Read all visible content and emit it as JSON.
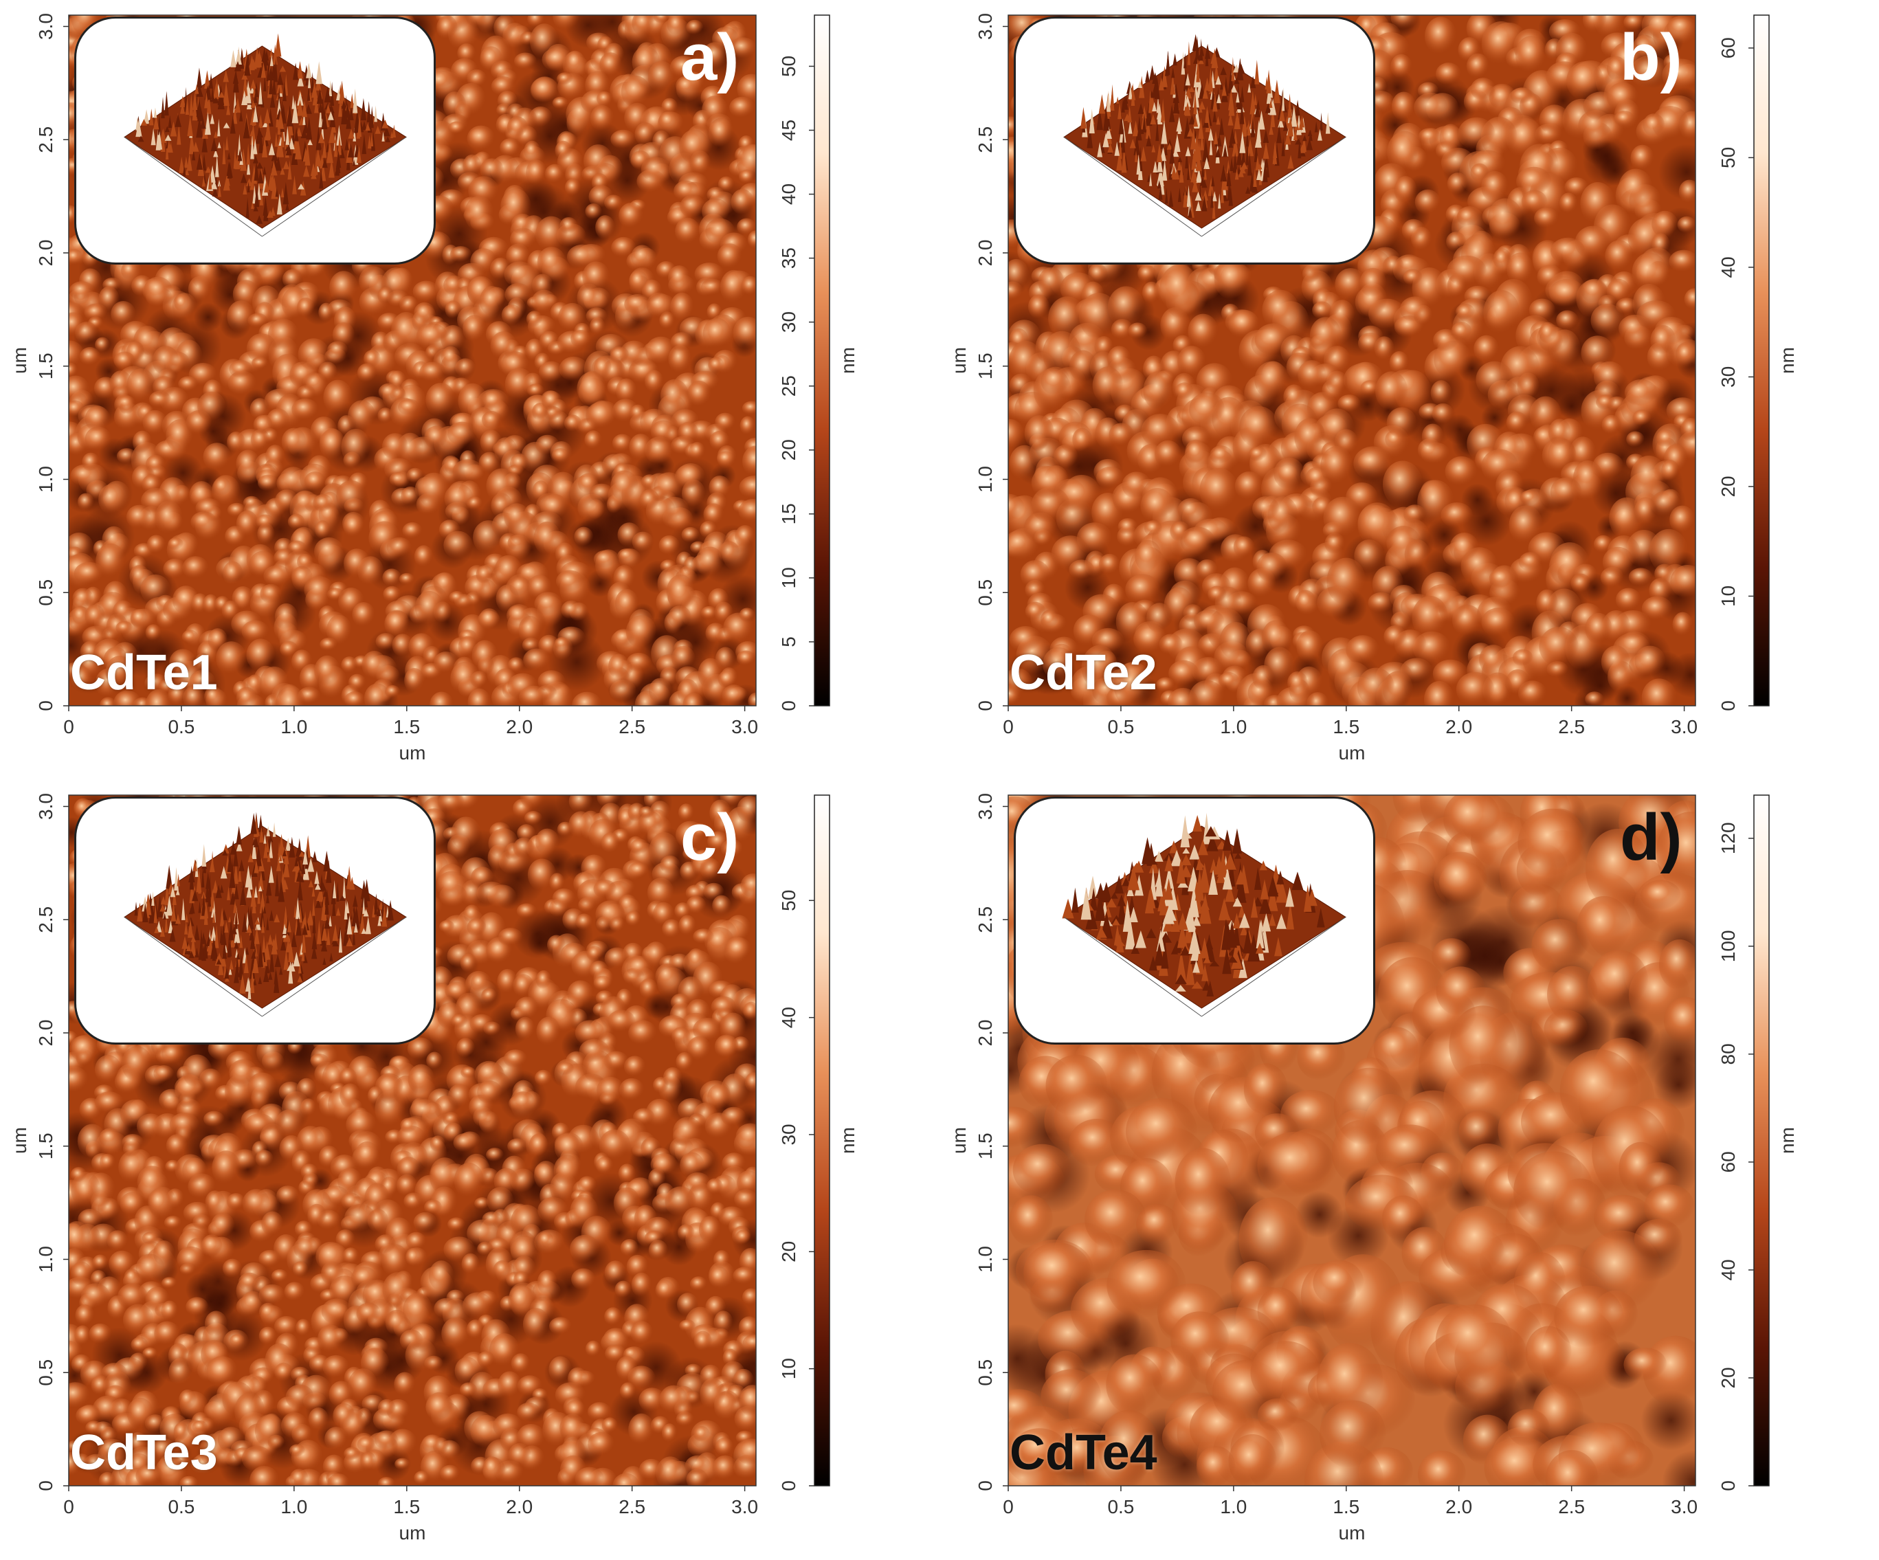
{
  "panels": [
    {
      "id": "a",
      "letter": "a)",
      "sample": "CdTe1",
      "x_axis": {
        "label": "um",
        "ticks": [
          "0",
          "0.5",
          "1.0",
          "1.5",
          "2.0",
          "2.5",
          "3.0"
        ]
      },
      "y_axis": {
        "label": "um",
        "ticks": [
          "0",
          "0.5",
          "1.0",
          "1.5",
          "2.0",
          "2.5",
          "3.0"
        ]
      },
      "colorbar": {
        "unit": "nm",
        "ticks": [
          "0",
          "5",
          "10",
          "15",
          "20",
          "25",
          "30",
          "35",
          "40",
          "45",
          "50"
        ],
        "max": 54
      },
      "grain": "fine",
      "dark_labels": false
    },
    {
      "id": "b",
      "letter": "b)",
      "sample": "CdTe2",
      "x_axis": {
        "label": "um",
        "ticks": [
          "0",
          "0.5",
          "1.0",
          "1.5",
          "2.0",
          "2.5",
          "3.0"
        ]
      },
      "y_axis": {
        "label": "um",
        "ticks": [
          "0",
          "0.5",
          "1.0",
          "1.5",
          "2.0",
          "2.5",
          "3.0"
        ]
      },
      "colorbar": {
        "unit": "nm",
        "ticks": [
          "0",
          "10",
          "20",
          "30",
          "40",
          "50",
          "60"
        ],
        "max": 63
      },
      "grain": "medium",
      "dark_labels": false
    },
    {
      "id": "c",
      "letter": "c)",
      "sample": "CdTe3",
      "x_axis": {
        "label": "um",
        "ticks": [
          "0",
          "0.5",
          "1.0",
          "1.5",
          "2.0",
          "2.5",
          "3.0"
        ]
      },
      "y_axis": {
        "label": "um",
        "ticks": [
          "0",
          "0.5",
          "1.0",
          "1.5",
          "2.0",
          "2.5",
          "3.0"
        ]
      },
      "colorbar": {
        "unit": "nm",
        "ticks": [
          "0",
          "10",
          "20",
          "30",
          "40",
          "50"
        ],
        "max": 59
      },
      "grain": "fine",
      "dark_labels": false
    },
    {
      "id": "d",
      "letter": "d)",
      "sample": "CdTe4",
      "x_axis": {
        "label": "um",
        "ticks": [
          "0",
          "0.5",
          "1.0",
          "1.5",
          "2.0",
          "2.5",
          "3.0"
        ]
      },
      "y_axis": {
        "label": "um",
        "ticks": [
          "0",
          "0.5",
          "1.0",
          "1.5",
          "2.0",
          "2.5",
          "3.0"
        ]
      },
      "colorbar": {
        "unit": "nm",
        "ticks": [
          "0",
          "20",
          "40",
          "60",
          "80",
          "100",
          "120"
        ],
        "max": 128
      },
      "grain": "coarse",
      "dark_labels": true
    }
  ],
  "colors": {
    "base": "#a8400f",
    "dark": "#3a0d02",
    "bright": "#ffd2a3",
    "colorbar_stops": [
      "#000000",
      "#5a1505",
      "#b5461a",
      "#e8915a",
      "#ffe7cf",
      "#ffffff"
    ]
  }
}
